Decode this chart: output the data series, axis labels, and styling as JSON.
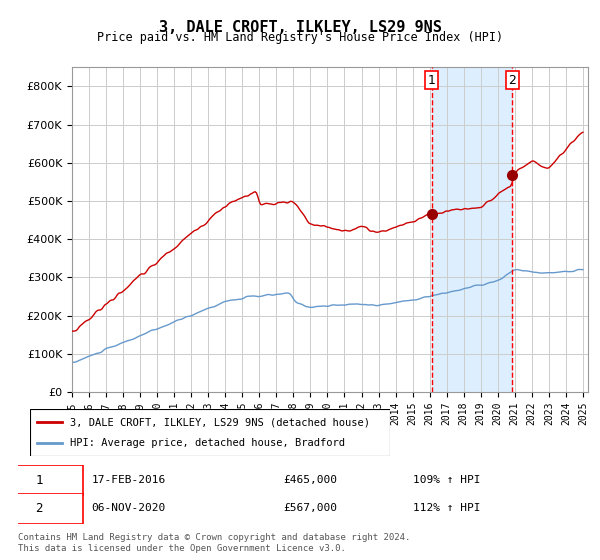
{
  "title": "3, DALE CROFT, ILKLEY, LS29 9NS",
  "subtitle": "Price paid vs. HM Land Registry's House Price Index (HPI)",
  "legend_line1": "3, DALE CROFT, ILKLEY, LS29 9NS (detached house)",
  "legend_line2": "HPI: Average price, detached house, Bradford",
  "sale1_date": "17-FEB-2016",
  "sale1_price": 465000,
  "sale1_label": "109% ↑ HPI",
  "sale2_date": "06-NOV-2020",
  "sale2_price": 567000,
  "sale2_label": "112% ↑ HPI",
  "footnote": "Contains HM Land Registry data © Crown copyright and database right 2024.\nThis data is licensed under the Open Government Licence v3.0.",
  "red_line_color": "#cc0000",
  "blue_line_color": "#6699cc",
  "shade_color": "#ddeeff",
  "marker_color": "#990000",
  "vline_color": "#ff0000",
  "grid_color": "#cccccc",
  "ylim": [
    0,
    850000
  ],
  "yticks": [
    0,
    100000,
    200000,
    300000,
    400000,
    500000,
    600000,
    700000,
    800000
  ],
  "start_year": 1995,
  "end_year": 2025,
  "sale1_x": 2016.12,
  "sale2_x": 2020.85
}
